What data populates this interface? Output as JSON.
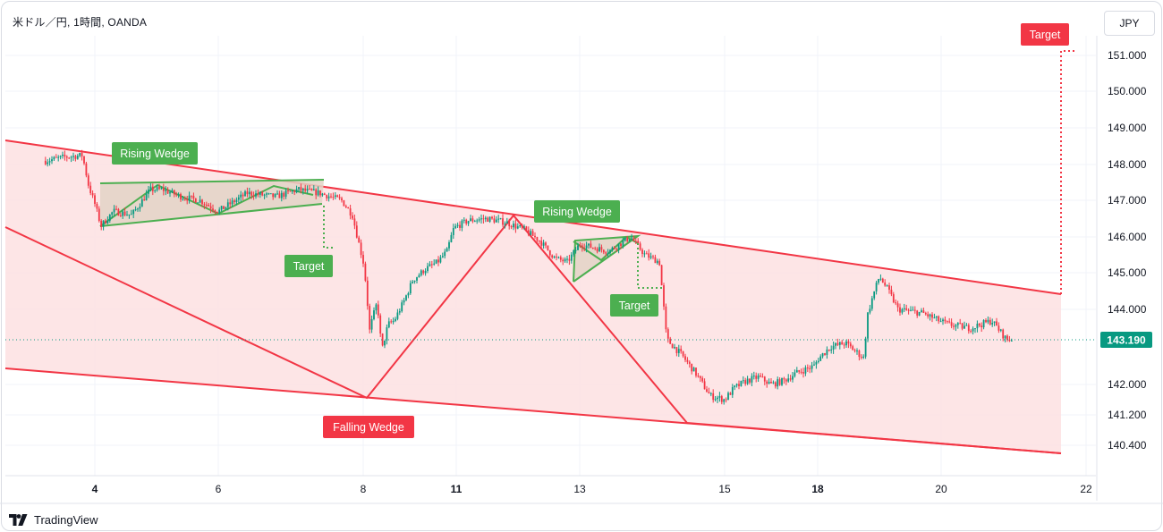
{
  "header": {
    "title": "米ドル／円, 1時間, OANDA",
    "currency_label": "JPY"
  },
  "footer": {
    "brand_label": "TradingView"
  },
  "chart_data": {
    "type": "candlestick",
    "symbol": "米ドル／円",
    "interval": "1時間",
    "source": "OANDA",
    "currency": "JPY",
    "x_ticks": [
      {
        "label": "4",
        "day": 4,
        "bold": true
      },
      {
        "label": "6",
        "day": 6,
        "bold": false
      },
      {
        "label": "8",
        "day": 8,
        "bold": false
      },
      {
        "label": "11",
        "day": 11,
        "bold": true
      },
      {
        "label": "13",
        "day": 13,
        "bold": false
      },
      {
        "label": "15",
        "day": 15,
        "bold": false
      },
      {
        "label": "18",
        "day": 18,
        "bold": true
      },
      {
        "label": "20",
        "day": 20,
        "bold": false
      },
      {
        "label": "22",
        "day": 22,
        "bold": false
      }
    ],
    "y_ticks": [
      "151.000",
      "150.000",
      "149.000",
      "148.000",
      "147.000",
      "146.000",
      "145.000",
      "144.000",
      "142.000",
      "141.200",
      "140.400"
    ],
    "current_price": "143.190",
    "colors": {
      "up": "#089981",
      "down": "#f23645",
      "channel": "#f23645",
      "channel_fill": "#fde0e2",
      "wedge": "#4caf50",
      "wedge_fill": "#e3d4c5",
      "label_green": "#4caf50",
      "label_red": "#f23645"
    },
    "annotations": [
      {
        "text": "Rising Wedge",
        "color": "green"
      },
      {
        "text": "Target",
        "color": "green"
      },
      {
        "text": "Rising Wedge",
        "color": "green"
      },
      {
        "text": "Target",
        "color": "green"
      },
      {
        "text": "Falling Wedge",
        "color": "red"
      },
      {
        "text": "Target",
        "color": "red"
      }
    ],
    "price_path": [
      [
        3.2,
        148.1
      ],
      [
        3.5,
        148.2
      ],
      [
        3.8,
        148.25
      ],
      [
        3.9,
        147.4
      ],
      [
        4.0,
        146.9
      ],
      [
        4.1,
        146.3
      ],
      [
        4.3,
        146.7
      ],
      [
        4.6,
        146.6
      ],
      [
        4.9,
        147.3
      ],
      [
        5.1,
        147.3
      ],
      [
        5.4,
        147.1
      ],
      [
        5.7,
        147.0
      ],
      [
        6.0,
        146.7
      ],
      [
        6.4,
        147.2
      ],
      [
        6.8,
        147.1
      ],
      [
        7.1,
        147.3
      ],
      [
        7.4,
        147.2
      ],
      [
        7.7,
        147.0
      ],
      [
        7.85,
        146.6
      ],
      [
        8.0,
        145.3
      ],
      [
        8.1,
        144.6
      ],
      [
        8.2,
        143.4
      ],
      [
        8.25,
        143.6
      ],
      [
        8.45,
        144.2
      ],
      [
        8.6,
        142.9
      ],
      [
        8.8,
        143.6
      ],
      [
        9.0,
        143.7
      ],
      [
        9.3,
        144.2
      ],
      [
        9.6,
        144.8
      ],
      [
        10.0,
        145.1
      ],
      [
        10.4,
        145.3
      ],
      [
        10.7,
        145.6
      ],
      [
        10.9,
        146.2
      ],
      [
        11.2,
        146.45
      ],
      [
        11.5,
        146.5
      ],
      [
        11.8,
        146.4
      ],
      [
        12.1,
        146.2
      ],
      [
        12.35,
        145.9
      ],
      [
        12.6,
        145.4
      ],
      [
        12.8,
        145.3
      ],
      [
        13.0,
        145.8
      ],
      [
        13.4,
        145.6
      ],
      [
        13.7,
        146.0
      ],
      [
        13.9,
        145.5
      ],
      [
        14.1,
        145.3
      ],
      [
        14.2,
        143.2
      ],
      [
        14.4,
        142.8
      ],
      [
        14.6,
        142.3
      ],
      [
        14.8,
        141.7
      ],
      [
        15.0,
        141.6
      ],
      [
        15.3,
        141.9
      ],
      [
        15.7,
        142.1
      ],
      [
        16.1,
        142.2
      ],
      [
        16.5,
        142.0
      ],
      [
        16.9,
        142.1
      ],
      [
        17.3,
        142.3
      ],
      [
        17.6,
        142.4
      ],
      [
        17.9,
        142.5
      ],
      [
        18.2,
        143.0
      ],
      [
        18.45,
        143.1
      ],
      [
        18.6,
        142.9
      ],
      [
        18.75,
        142.7
      ],
      [
        18.8,
        143.8
      ],
      [
        18.9,
        144.4
      ],
      [
        19.0,
        144.9
      ],
      [
        19.15,
        144.5
      ],
      [
        19.3,
        144.0
      ],
      [
        19.7,
        143.9
      ],
      [
        20.1,
        143.6
      ],
      [
        20.4,
        143.5
      ],
      [
        20.7,
        143.7
      ],
      [
        20.9,
        143.2
      ],
      [
        21.0,
        143.2
      ]
    ]
  }
}
